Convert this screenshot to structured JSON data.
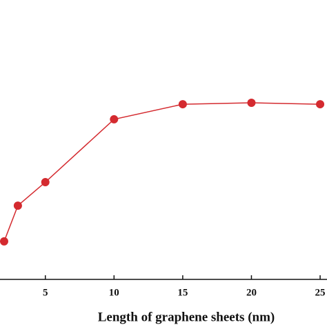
{
  "chart_data": {
    "type": "line",
    "xlabel": "Length of graphene sheets (nm)",
    "x": [
      2,
      3,
      5,
      10,
      15,
      20,
      25
    ],
    "series": [
      {
        "color": "#d42a2f",
        "values": [
          13.6,
          26.4,
          34.8,
          57.3,
          62.7,
          63.2,
          62.7
        ]
      }
    ],
    "xlim": [
      1.7,
      25.5
    ],
    "ylim": [
      0,
      100
    ],
    "xticks": [
      5,
      10,
      15,
      20,
      25
    ]
  }
}
